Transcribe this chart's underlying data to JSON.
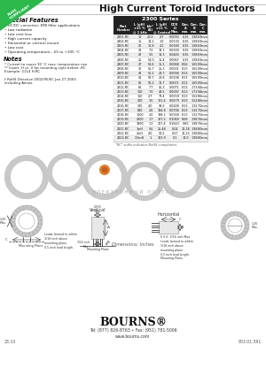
{
  "title": "High Current Toroid Inductors",
  "badge_color": "#2db84b",
  "special_features_title": "Special Features",
  "special_features": [
    "DC/DC converter, EMI filter applications",
    "Low radiation",
    "Low core loss",
    "High current capacity",
    "Horizontal or vertical mount",
    "Low cost",
    "Operating temperature: -55 to +105 °C"
  ],
  "notes_title": "Notes",
  "notes": [
    "* Current to cause 30 °C max. temperature rise",
    "** Insert -H or -V for mounting style before -RC",
    "Example: 2114 H-RC",
    "",
    "† RoHS Directive 2002/95/EC Jan 27 2003",
    "including Annex."
  ],
  "table_header_row2": [
    "Part\nNumber",
    "L (μH)\n±15 %\n@ 1 kHz",
    "Idc*\n(A)",
    "L (μH)\n±11 %\n@ Control",
    "DCR\nΩ\nMax.",
    "Dim.\nA\nmm.",
    "Dim.\nB\nmm.",
    "Dim.\nC\nmm."
  ],
  "table_data": [
    [
      "2301-RC",
      "10",
      "20.0",
      "4.7",
      "0.0093",
      "6.35",
      "1.98",
      "6.9mm"
    ],
    [
      "2302-RC",
      "15",
      "14.1",
      "1.0",
      "0.0130",
      "6.35",
      "1.98",
      "6.9mm"
    ],
    [
      "2303-RC",
      "22",
      "10.8",
      "4.1",
      "0.0180",
      "6.35",
      "1.98",
      "6.9mm"
    ],
    [
      "2304-RC",
      "33",
      "7.2",
      "13.1",
      "0.0300",
      "6.35",
      "1.98",
      "6.9mm"
    ],
    [
      "2305-RC",
      "47",
      "5.5",
      "11.3",
      "0.0445",
      "6.35",
      "1.98",
      "6.9mm"
    ],
    [
      "2306-RC",
      "25",
      "54.0",
      "15.4",
      "0.0067",
      "6.35",
      "1.98",
      "6.9mm"
    ],
    [
      "2307-RC",
      "27",
      "53.6",
      "15.1",
      "0.0068",
      "8.56",
      "1.65",
      "9.9mm"
    ],
    [
      "2308-RC",
      "30",
      "51.7",
      "25.3",
      "0.0031",
      "8.13",
      "1.65",
      "9.9mm"
    ],
    [
      "2309-RC",
      "38",
      "51.2",
      "24.7",
      "0.0094",
      "8.13",
      "1.65",
      "9.9mm"
    ],
    [
      "2310-RC",
      "41",
      "50.7",
      "28.8",
      "0.0108",
      "8.13",
      "1.65",
      "9.9mm"
    ],
    [
      "2311-RC",
      "56",
      "50.2",
      "12.7",
      "0.0071",
      "8.13",
      "1.65",
      "9.9mm"
    ],
    [
      "2312-RC",
      "68",
      "7.7",
      "45.3",
      "0.0071",
      "8.13",
      "1.73",
      "9.4mm"
    ],
    [
      "2313-RC",
      "100",
      "7.0",
      "43.5",
      "0.0097",
      "8.13",
      "1.73",
      "9.4mm"
    ],
    [
      "2314-RC",
      "150",
      "4.7",
      "73.4",
      "0.0159",
      "8.13",
      "1.52",
      "8.6mm"
    ],
    [
      "2315-RC",
      "220",
      "3.5",
      "101.4",
      "0.0279",
      "8.13",
      "1.52",
      "8.6mm"
    ],
    [
      "2316-RC",
      "300",
      "4.0",
      "93.6",
      "0.0248",
      "8.13",
      "1.32",
      "7.0mm"
    ],
    [
      "2317-RC",
      "680",
      "2.6",
      "134.8",
      "0.0706",
      "8.13",
      "1.32",
      "7.0mm"
    ],
    [
      "2318-RC",
      "1000",
      "2.0",
      "138.2",
      "0.0748",
      "8.13",
      "1.32",
      "7.0mm"
    ],
    [
      "2319-RC",
      "2200",
      "1.7",
      "167.2",
      "0.1069",
      "8.06",
      "1.98",
      "7.6mm"
    ],
    [
      "2320-RC",
      "3300",
      "1.3",
      "227.4",
      "0.1643",
      "9.65",
      "1.98",
      "7.6mm"
    ],
    [
      "2321-RC",
      "1mH",
      "5.6",
      "25.48",
      "0.04",
      "11.18",
      "1.98",
      "8.0mm"
    ],
    [
      "2322-RC",
      "2mH",
      "4.0",
      "54.5",
      "0.27",
      "11.23",
      "1.98",
      "8.0mm"
    ],
    [
      "2323-RC",
      "3.3mH",
      "1",
      "303.9",
      "0.1",
      "14.0",
      "1.98",
      "8.0mm"
    ]
  ],
  "rc_note": "\"RC\" suffix indicates RoHS compliance.",
  "dimensions_label": "Dimensions: Inches",
  "vertical_label": "Vertical",
  "horizontal_label": "Horizontal",
  "bourns_logo": "BOURNS®",
  "phone": "Tel: (877) 826-8763 • Fax: (951) 781-5006",
  "website": "www.bourns.com",
  "page_left": "23.10",
  "page_right": "803.01.591",
  "bg_color": "#ffffff",
  "table_header_bg": "#222222",
  "table_header_fg": "#ffffff",
  "table_alt_row": "#eeeeee",
  "table_border": "#aaaaaa",
  "kazus_gray": "#c8c8c8",
  "kazus_orange": "#e08030",
  "kazus_cyrillic_color": "#aaaaaa",
  "dim_line_color": "#333333",
  "toroid_outer": "#d0d0d0",
  "toroid_inner_hole": "#ffffff"
}
